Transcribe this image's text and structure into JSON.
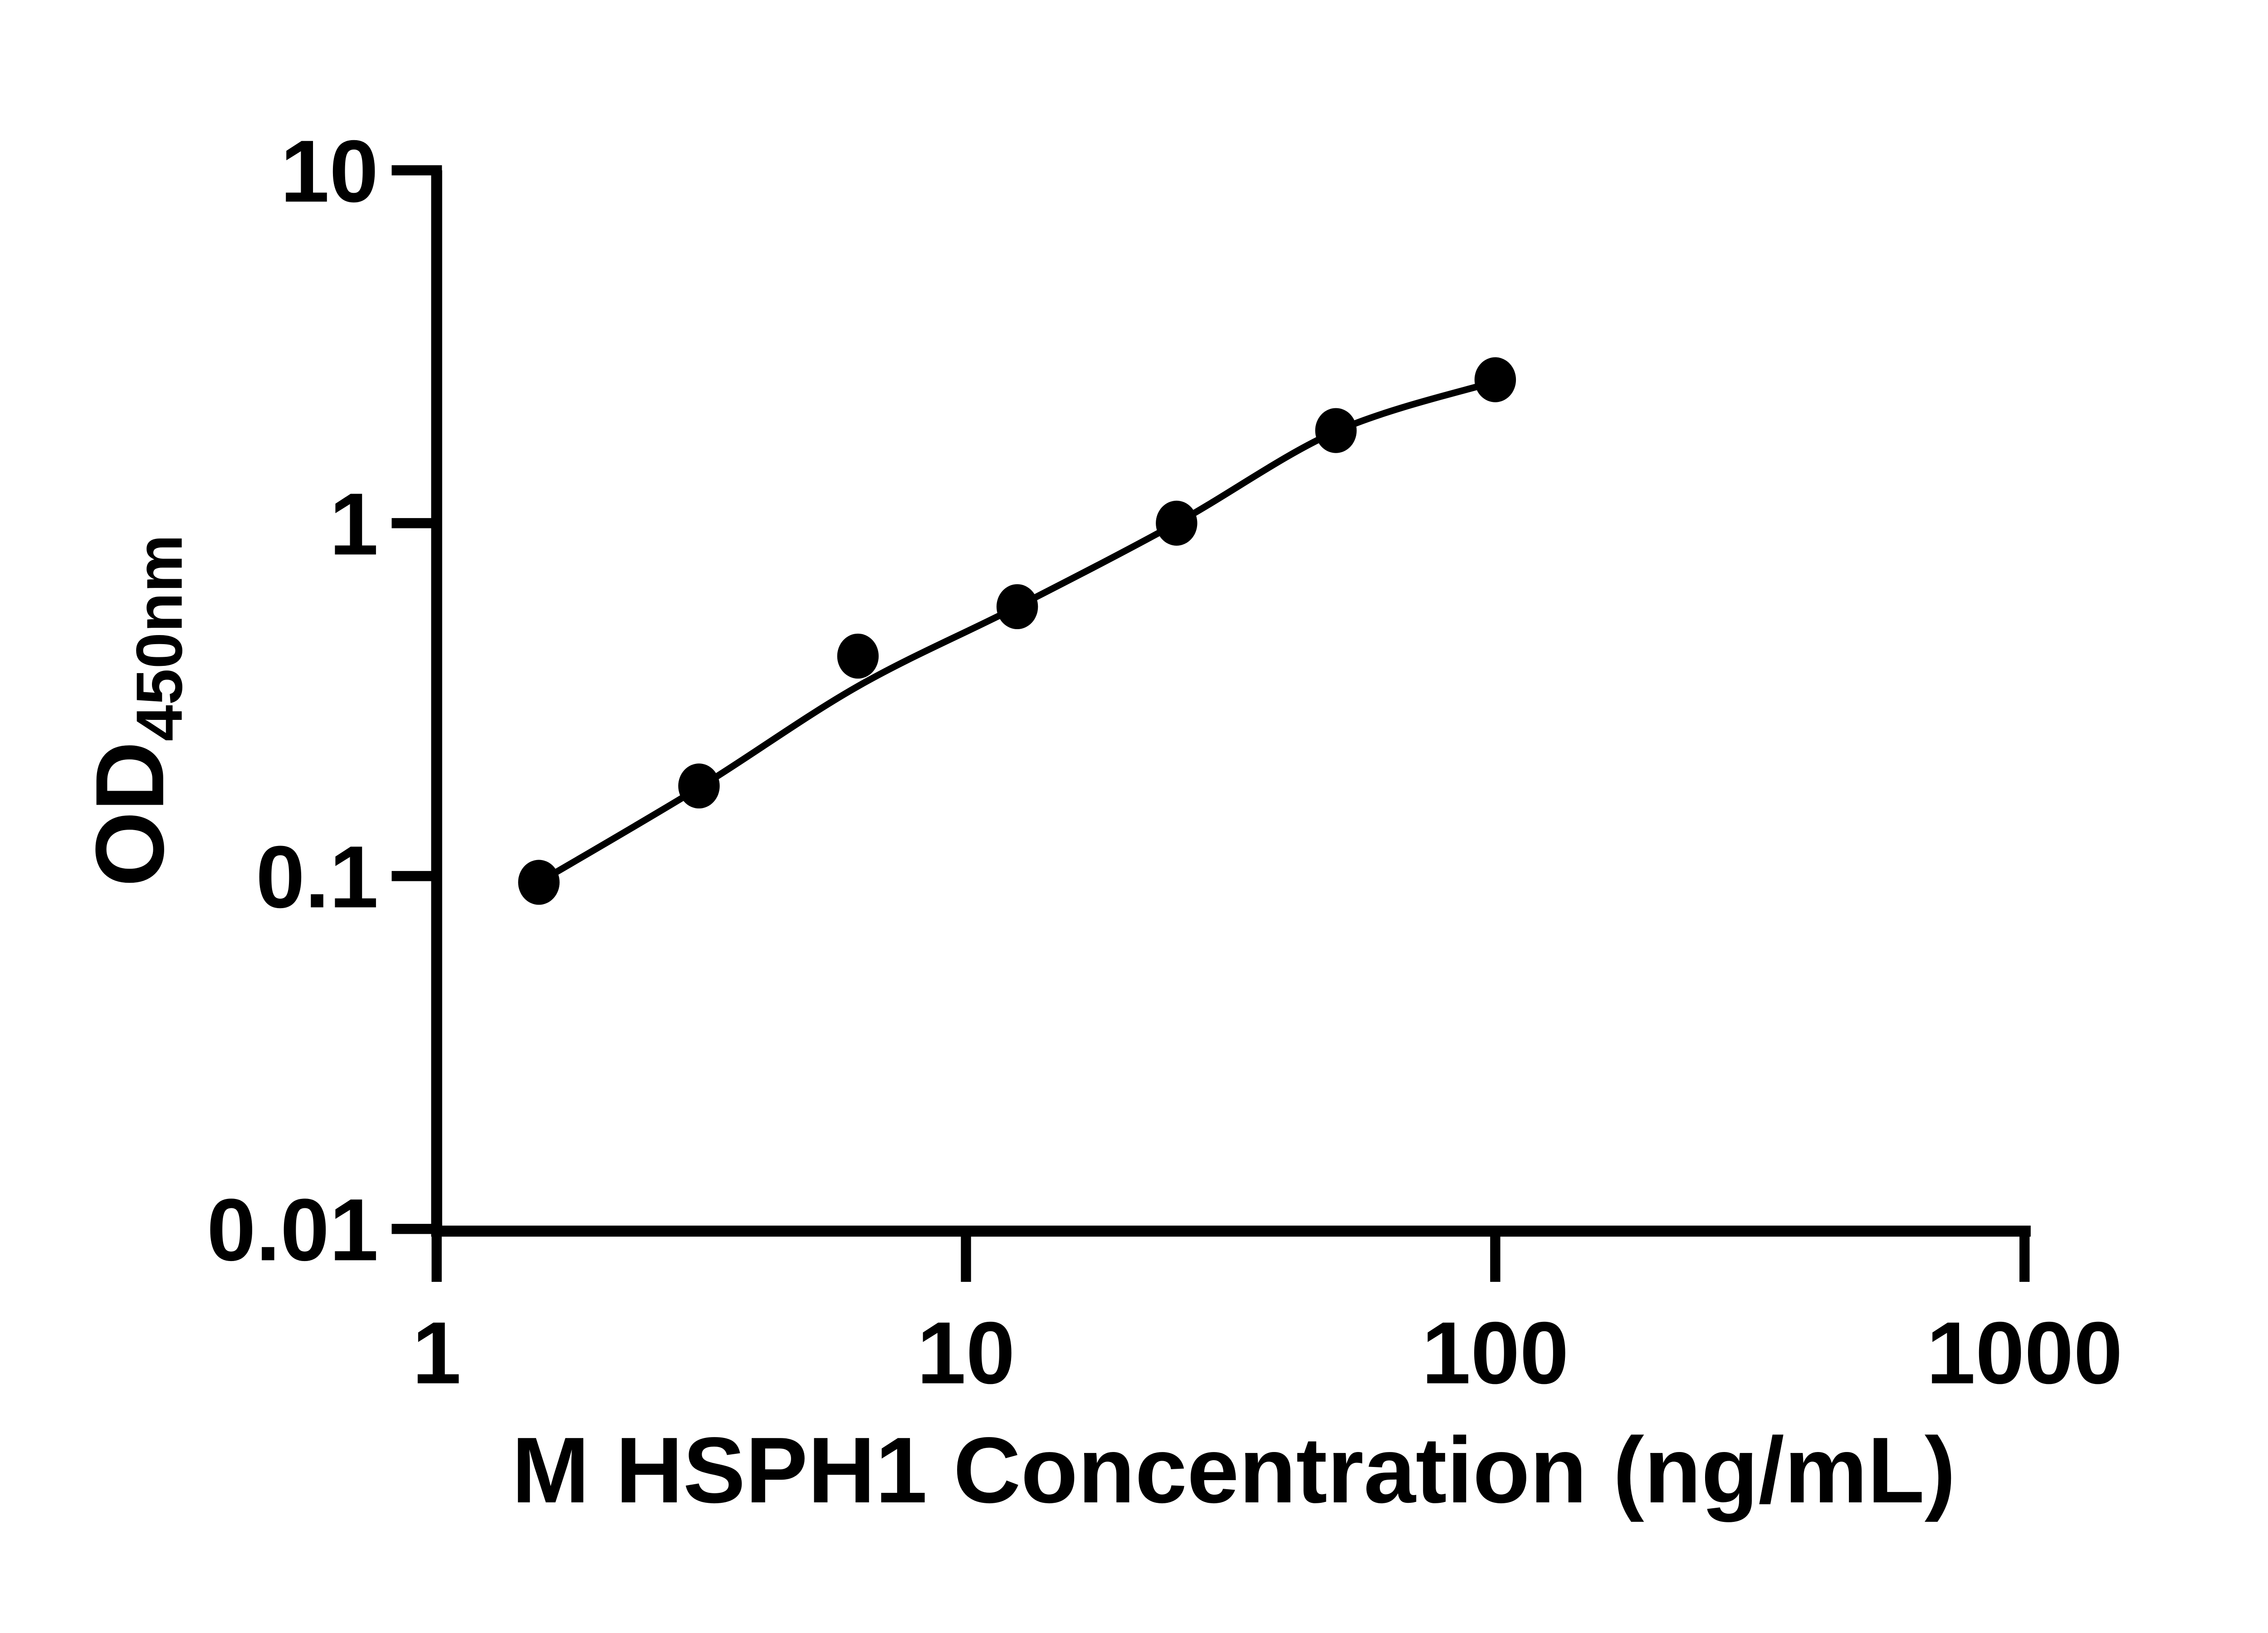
{
  "figure": {
    "background_color": "#ffffff",
    "ink_color": "#000000"
  },
  "chart_data": {
    "type": "scatter",
    "subtype": "elisa-standard-curve-with-fit",
    "title": "",
    "xlabel": "M HSPH1 Concentration (ng/mL)",
    "ylabel_main": "OD",
    "ylabel_sub": "450nm",
    "x_scale": "log10",
    "y_scale": "log10",
    "xlim": [
      1,
      1000
    ],
    "ylim": [
      0.01,
      10
    ],
    "grid": false,
    "legend_position": "none",
    "x_ticks": {
      "values": [
        1,
        10,
        100,
        1000
      ],
      "labels": [
        "1",
        "10",
        "100",
        "1000"
      ]
    },
    "y_ticks": {
      "values": [
        10,
        1,
        0.1,
        0.01
      ],
      "labels": [
        "10",
        "1",
        "0.1",
        "0.01"
      ]
    },
    "series": [
      {
        "marker": "filled-circle",
        "color": "#000000",
        "points": [
          {
            "x": 1.56,
            "y": 0.096
          },
          {
            "x": 3.13,
            "y": 0.18
          },
          {
            "x": 6.25,
            "y": 0.42
          },
          {
            "x": 12.5,
            "y": 0.58
          },
          {
            "x": 25,
            "y": 1.0
          },
          {
            "x": 50,
            "y": 1.83
          },
          {
            "x": 100,
            "y": 2.55
          }
        ]
      }
    ],
    "fit_curve": {
      "color": "#000000",
      "samples": [
        [
          1.56,
          0.096
        ],
        [
          3.13,
          0.178
        ],
        [
          6.25,
          0.345
        ],
        [
          12.5,
          0.58
        ],
        [
          25,
          1.0
        ],
        [
          50,
          1.82
        ],
        [
          100,
          2.52
        ]
      ]
    }
  }
}
